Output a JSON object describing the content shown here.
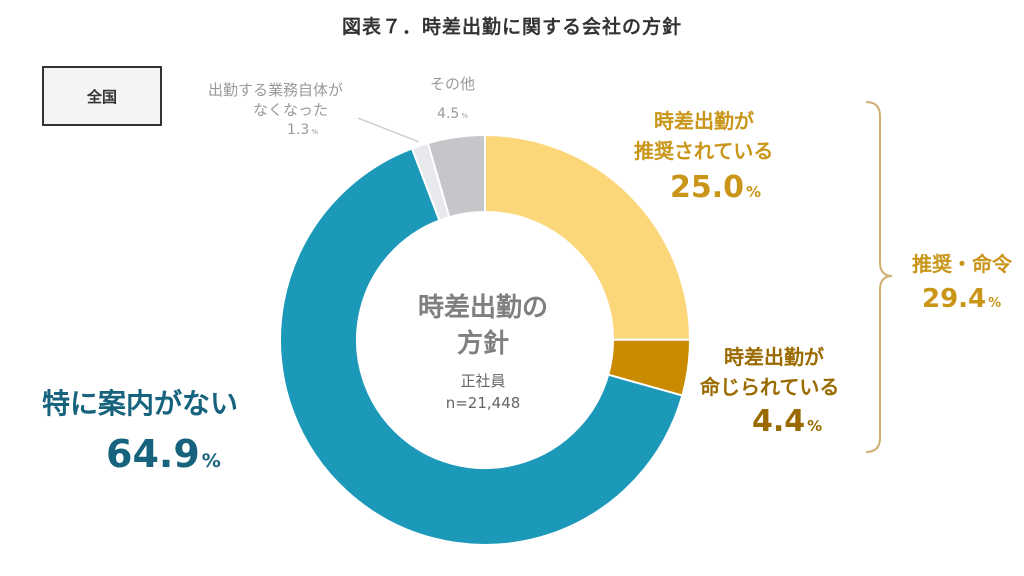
{
  "title": "図表７．時差出勤に関する会社の方針",
  "region": "全国",
  "center": {
    "title_line1": "時差出勤の",
    "title_line2": "方針",
    "sub_line1": "正社員",
    "sub_line2": "n=21,448"
  },
  "bracket_label": {
    "line1": "推奨・命令",
    "value": "29.4",
    "unit": "%"
  },
  "colors": {
    "recommended": "#fcd77a",
    "ordered": "#c98c00",
    "no_guidance": "#1c98b9",
    "no_work": "#e7e9ec",
    "other": "#c5c6c9",
    "bracket": "#cfae72"
  },
  "chart_data": {
    "type": "pie",
    "donut": true,
    "title": "図表７．時差出勤に関する会社の方針",
    "unit": "%",
    "slices": [
      {
        "key": "recommended",
        "label_line1": "時差出勤が",
        "label_line2": "推奨されている",
        "value": 25.0,
        "value_text": "25.0"
      },
      {
        "key": "ordered",
        "label_line1": "時差出勤が",
        "label_line2": "命じられている",
        "value": 4.4,
        "value_text": "4.4"
      },
      {
        "key": "no_guidance",
        "label_line1": "特に案内がない",
        "label_line2": "",
        "value": 64.9,
        "value_text": "64.9"
      },
      {
        "key": "no_work",
        "label_line1": "出勤する業務自体が",
        "label_line2": "なくなった",
        "value": 1.3,
        "value_text": "1.3"
      },
      {
        "key": "other",
        "label_line1": "その他",
        "label_line2": "",
        "value": 4.5,
        "value_text": "4.5"
      }
    ]
  }
}
